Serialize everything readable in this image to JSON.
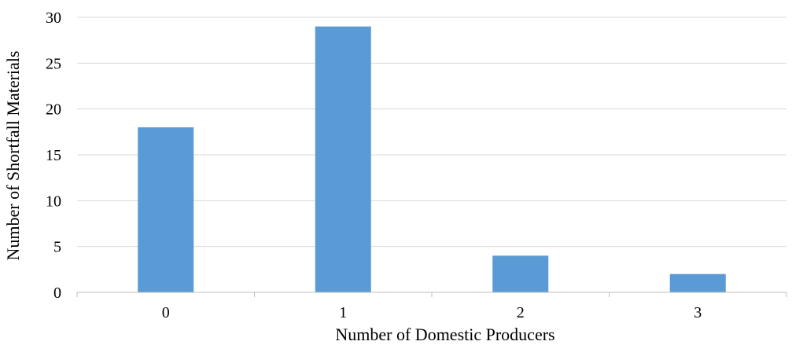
{
  "chart_data": {
    "type": "bar",
    "categories": [
      "0",
      "1",
      "2",
      "3"
    ],
    "values": [
      18,
      29,
      4,
      2
    ],
    "title": "",
    "xlabel": "Number of Domestic Producers",
    "ylabel": "Number of Shortfall Materials",
    "ylim": [
      0,
      30
    ],
    "yticks": [
      0,
      5,
      10,
      15,
      20,
      25,
      30
    ],
    "grid": true,
    "legend": "none",
    "bar_color": "#5b9bd5",
    "grid_color": "#d9d9d9",
    "axis_color": "#bfbfbf"
  }
}
